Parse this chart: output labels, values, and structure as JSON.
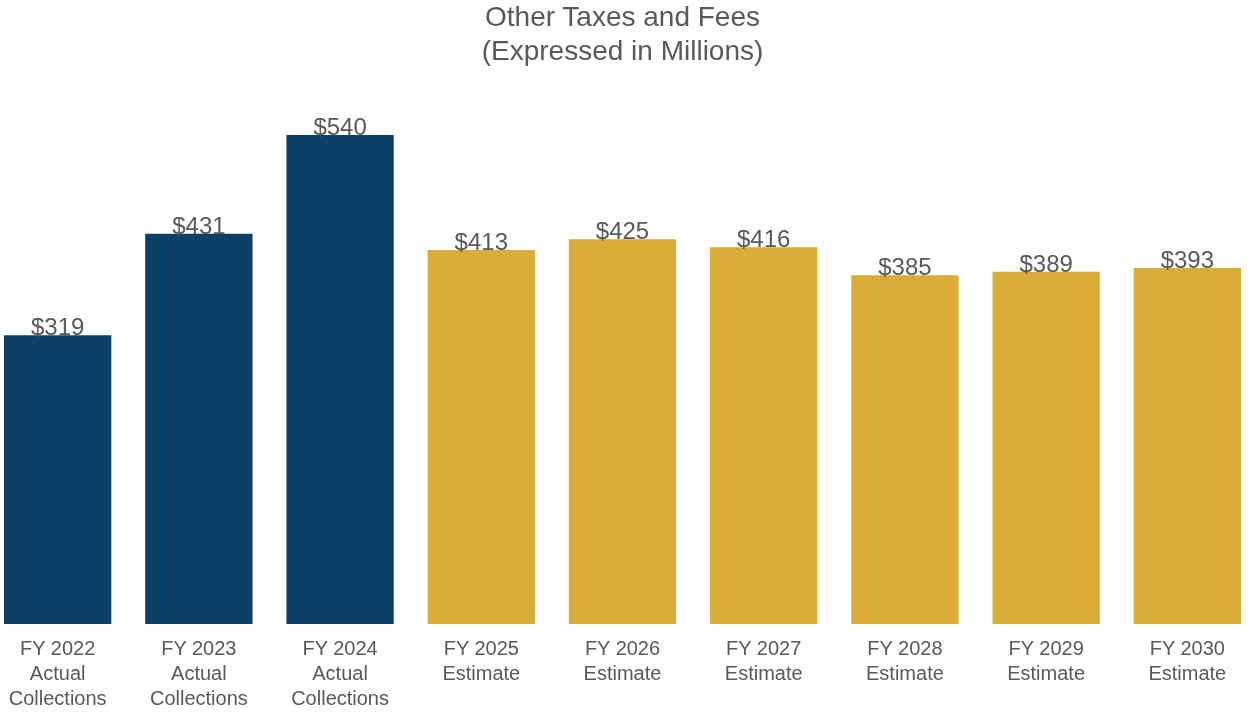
{
  "chart_data": {
    "type": "bar",
    "title": "Other Taxes and Fees",
    "subtitle": "(Expressed in Millions)",
    "categories": [
      "FY 2022\nActual\nCollections",
      "FY 2023\nActual\nCollections",
      "FY 2024\nActual\nCollections",
      "FY 2025\nEstimate",
      "FY 2026\nEstimate",
      "FY 2027\nEstimate",
      "FY 2028\nEstimate",
      "FY 2029\nEstimate",
      "FY 2030\nEstimate"
    ],
    "values": [
      319,
      431,
      540,
      413,
      425,
      416,
      385,
      389,
      393
    ],
    "colors": [
      "#0c4066",
      "#0c4066",
      "#0c4066",
      "#d9ad37",
      "#d9ad37",
      "#d9ad37",
      "#d9ad37",
      "#d9ad37",
      "#d9ad37"
    ],
    "value_labels": [
      "$319",
      "$431",
      "$540",
      "$413",
      "$425",
      "$416",
      "$385",
      "$389",
      "$393"
    ]
  }
}
